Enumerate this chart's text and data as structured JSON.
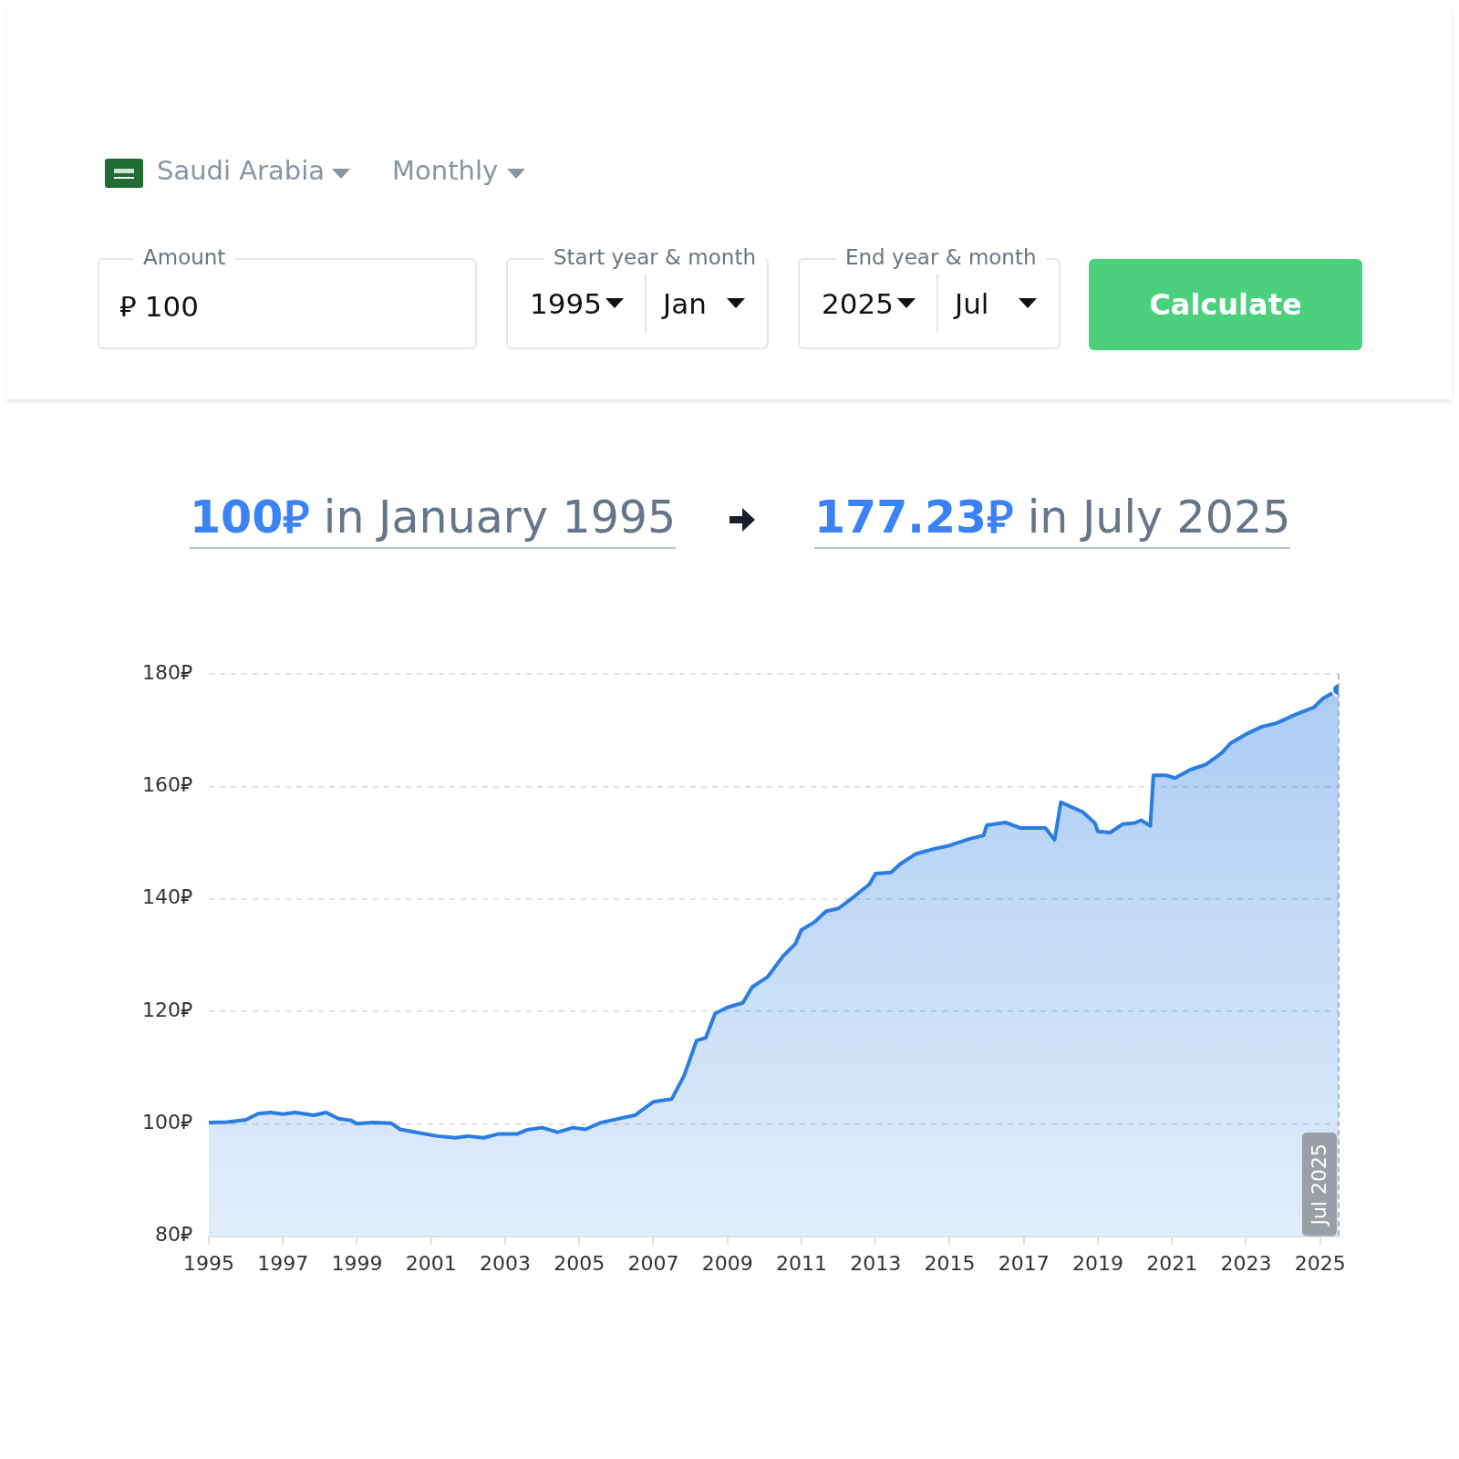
{
  "chart_data": {
    "type": "area",
    "title": "100⃁ in January 1995",
    "subtitle": "177.23⃁ in July 2025",
    "annotations": [
      "Saudi Arabia",
      "Monthly",
      "Amount",
      "⃁ 100",
      "Start year & month",
      "1995",
      "Jan",
      "End year & month",
      "2025",
      "Jul",
      "Calculate"
    ],
    "x": [
      "1995-01",
      "1995-07",
      "1996-01",
      "1996-05",
      "1996-09",
      "1997-01",
      "1997-05",
      "1997-11",
      "1998-03",
      "1998-07",
      "1998-11",
      "1999-01",
      "1999-06",
      "1999-12",
      "2000-03",
      "2000-09",
      "2001-03",
      "2001-09",
      "2002-01",
      "2002-06",
      "2002-11",
      "2003-05",
      "2003-08",
      "2004-01",
      "2004-06",
      "2004-11",
      "2005-03",
      "2005-08",
      "2006-01",
      "2006-07",
      "2007-01",
      "2007-07",
      "2007-11",
      "2008-03",
      "2008-06",
      "2008-09",
      "2009-01",
      "2009-06",
      "2009-09",
      "2010-02",
      "2010-07",
      "2010-11",
      "2011-01",
      "2011-05",
      "2011-09",
      "2012-01",
      "2012-06",
      "2012-11",
      "2013-01",
      "2013-06",
      "2013-09",
      "2014-02",
      "2014-08",
      "2015-01",
      "2015-07",
      "2015-12",
      "2016-01",
      "2016-07",
      "2016-12",
      "2017-04",
      "2017-08",
      "2017-11",
      "2018-01",
      "2018-05",
      "2018-08",
      "2018-12",
      "2019-01",
      "2019-05",
      "2019-09",
      "2020-01",
      "2020-03",
      "2020-06",
      "2020-07",
      "2020-11",
      "2021-02",
      "2021-07",
      "2021-12",
      "2022-05",
      "2022-08",
      "2023-01",
      "2023-06",
      "2023-11",
      "2024-05",
      "2024-11",
      "2025-02",
      "2025-07"
    ],
    "series": [
      {
        "color": "#2a7de1",
        "values": [
          100.2,
          100.3,
          100.7,
          101.8,
          102.0,
          101.7,
          102.0,
          101.5,
          102.0,
          100.9,
          100.6,
          100.0,
          100.2,
          100.1,
          99.0,
          98.4,
          97.8,
          97.5,
          97.8,
          97.5,
          98.2,
          98.2,
          98.9,
          99.3,
          98.5,
          99.3,
          99.0,
          100.2,
          100.8,
          101.5,
          103.9,
          104.4,
          108.6,
          114.8,
          115.3,
          119.6,
          120.7,
          121.5,
          124.3,
          126.1,
          129.8,
          132.0,
          134.5,
          135.8,
          137.8,
          138.3,
          140.4,
          142.6,
          144.5,
          144.7,
          146.2,
          148.0,
          148.9,
          149.5,
          150.6,
          151.3,
          153.1,
          153.6,
          152.6,
          152.6,
          152.6,
          150.5,
          157.2,
          156.2,
          155.5,
          153.5,
          152.0,
          151.8,
          153.3,
          153.5,
          154.0,
          153.0,
          162.0,
          162.0,
          161.5,
          163.0,
          163.9,
          165.9,
          167.7,
          169.3,
          170.6,
          171.3,
          172.8,
          174.1,
          175.7,
          177.23
        ]
      }
    ],
    "xlim": [
      "1995-01",
      "2025-07"
    ],
    "xticks": [
      "1995",
      "1997",
      "1999",
      "2001",
      "2003",
      "2005",
      "2007",
      "2009",
      "2011",
      "2013",
      "2015",
      "2017",
      "2019",
      "2021",
      "2023",
      "2025"
    ],
    "ylim": [
      80,
      180
    ],
    "yticks": [
      {
        "value": 80,
        "label": "80⃁"
      },
      {
        "value": 100,
        "label": "100⃁"
      },
      {
        "value": 120,
        "label": "120⃁"
      },
      {
        "value": 140,
        "label": "140⃁"
      },
      {
        "value": 160,
        "label": "160⃁"
      },
      {
        "value": 180,
        "label": "180⃁"
      }
    ],
    "grid": "y",
    "ref_lines": [
      {
        "axis": "x",
        "value": "2025-07",
        "label": "Jul 2025",
        "color": "#9aa0a8",
        "line_style": "dashed"
      }
    ]
  }
}
